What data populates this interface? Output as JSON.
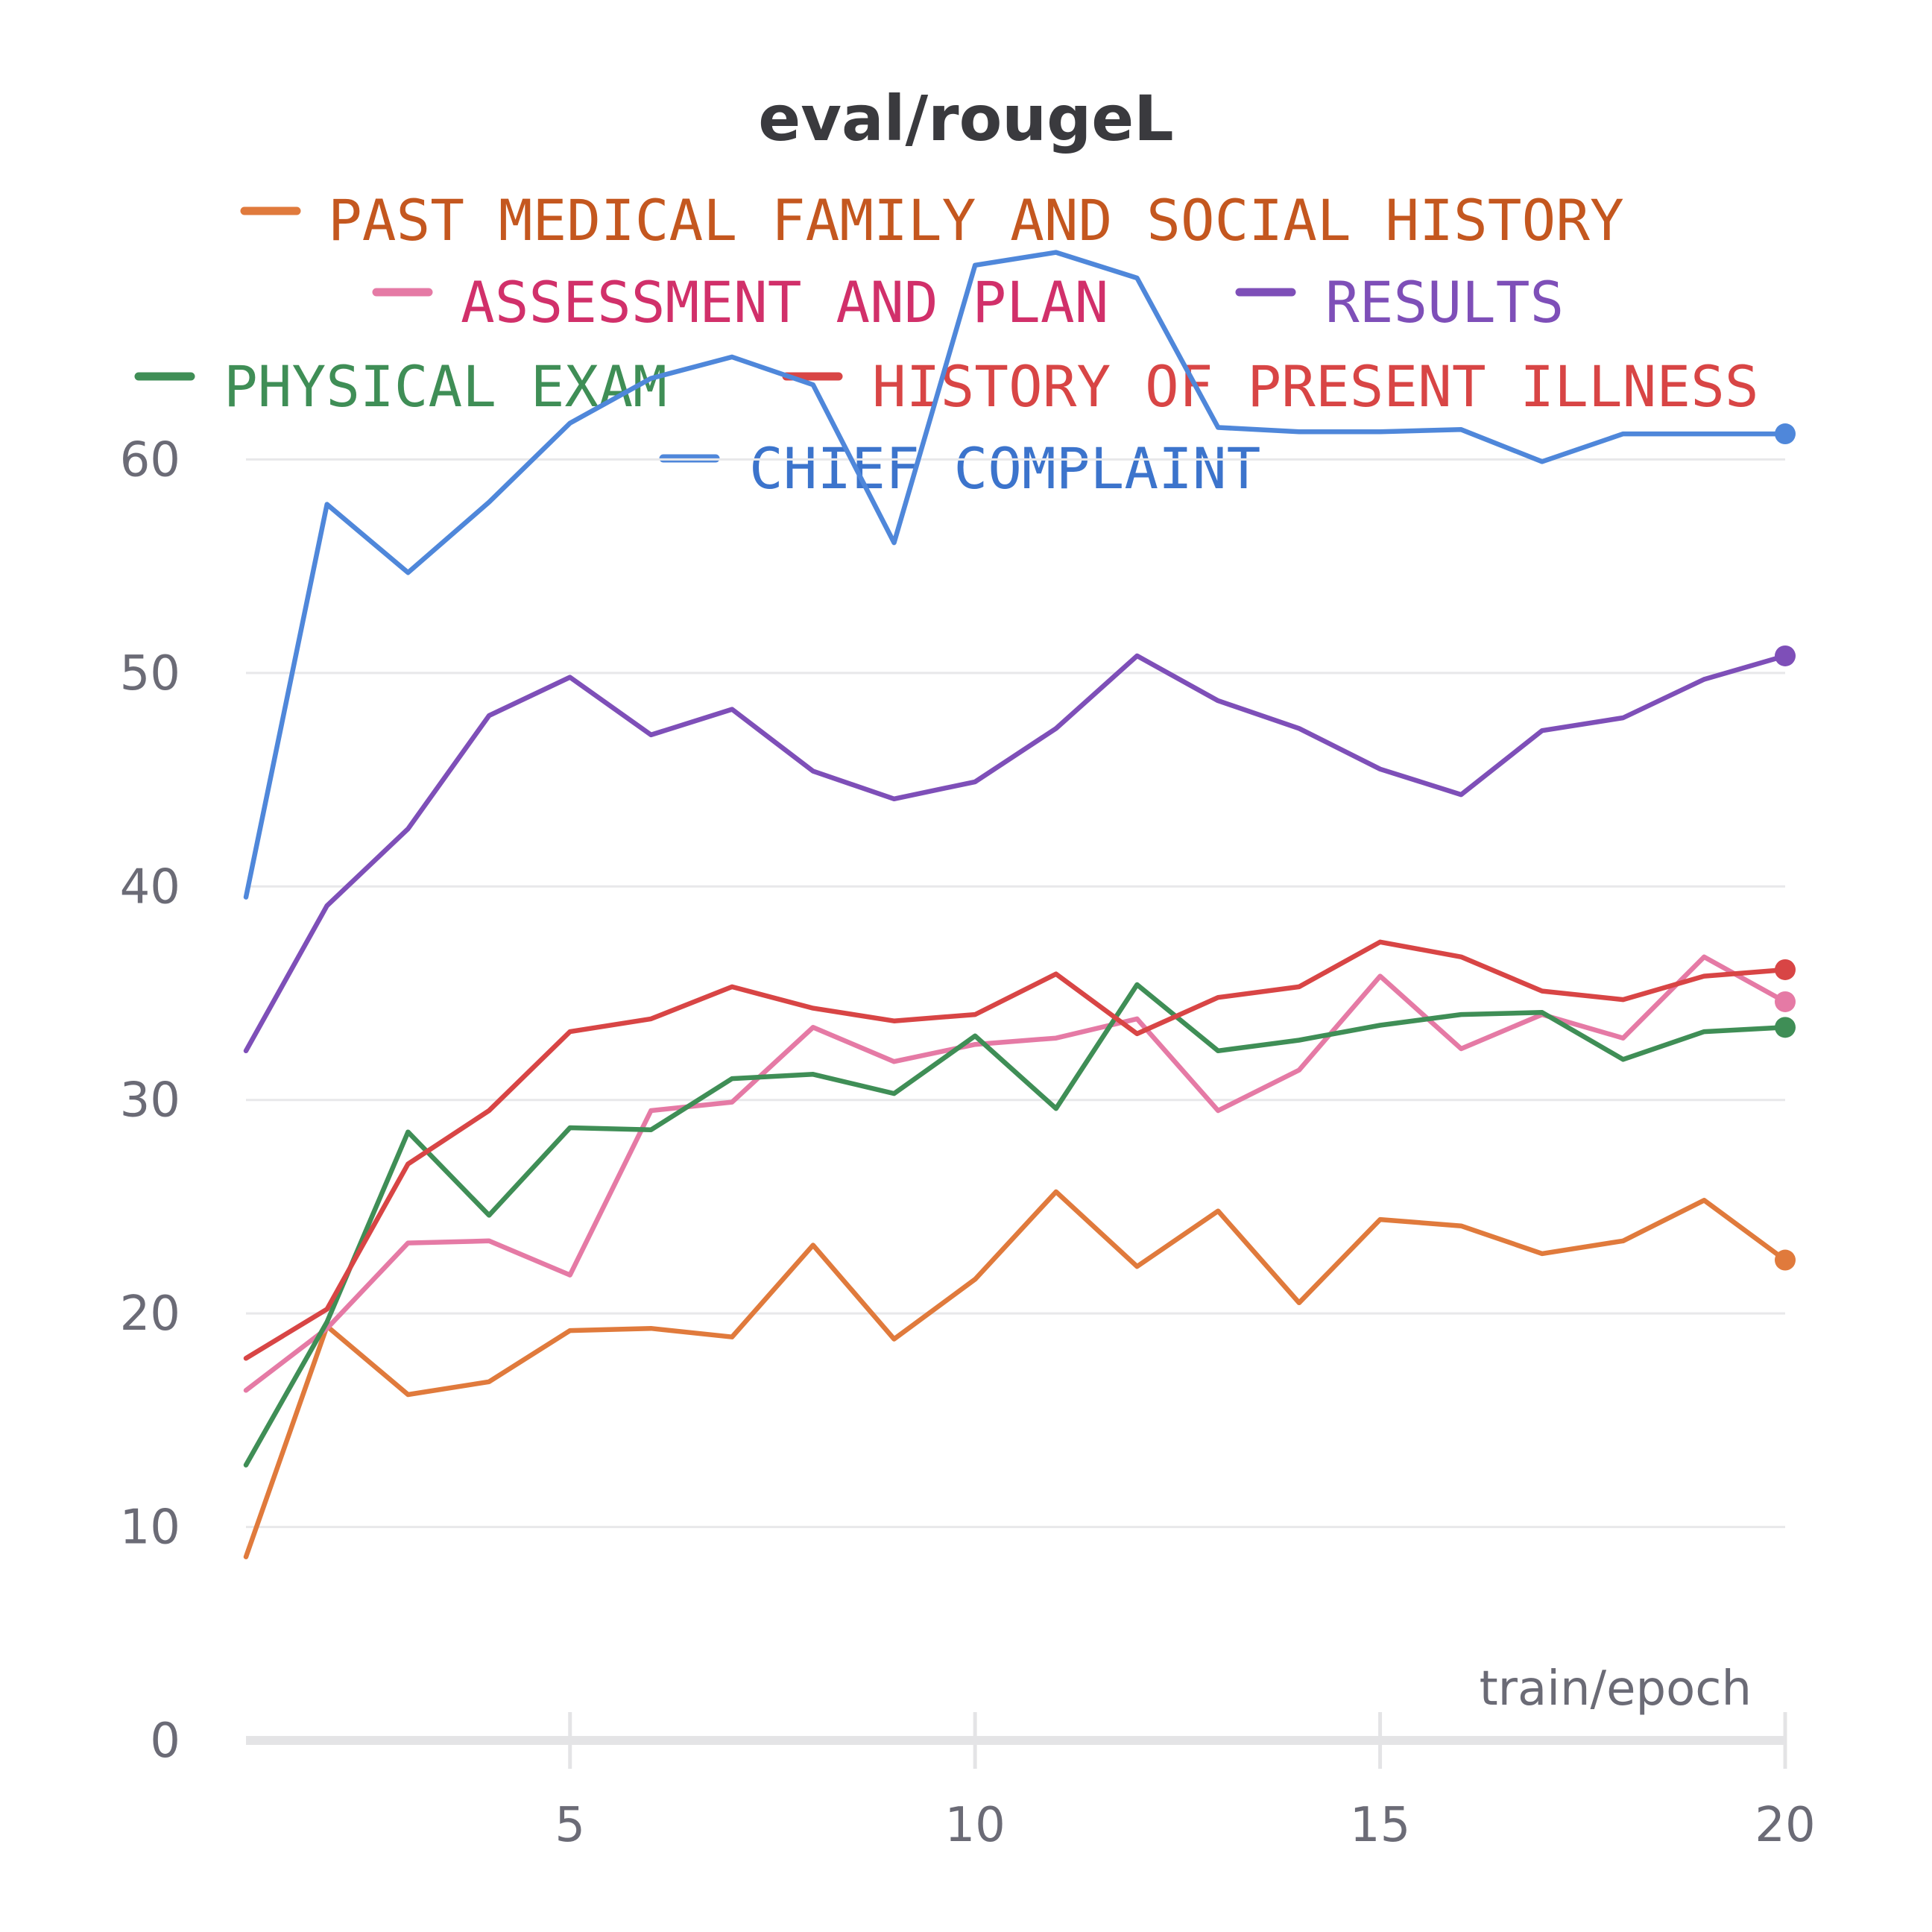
{
  "chart_data": {
    "type": "line",
    "title": "eval/rougeL",
    "xlabel": "train/epoch",
    "ylabel": "",
    "xlim": [
      1,
      20
    ],
    "ylim": [
      0,
      70
    ],
    "x_ticks": [
      5,
      10,
      15,
      20
    ],
    "y_ticks": [
      0,
      10,
      20,
      30,
      40,
      50,
      60
    ],
    "grid": true,
    "legend_position": "top",
    "x": [
      1,
      2,
      3,
      4,
      5,
      6,
      7,
      8,
      9,
      10,
      11,
      12,
      13,
      14,
      15,
      16,
      17,
      18,
      19,
      20
    ],
    "series": [
      {
        "name": "PAST MEDICAL FAMILY AND SOCIAL HISTORY",
        "color": "#e07a3c",
        "text_color": "#c4571f",
        "values": [
          8.6,
          19.4,
          16.2,
          16.8,
          19.2,
          19.3,
          18.9,
          23.2,
          18.8,
          21.6,
          25.7,
          22.2,
          24.8,
          20.5,
          24.4,
          24.1,
          22.8,
          23.4,
          25.3,
          22.5
        ]
      },
      {
        "name": "ASSESSMENT AND PLAN",
        "color": "#e57aa5",
        "text_color": "#d1306a",
        "values": [
          16.4,
          19.3,
          23.3,
          23.4,
          21.8,
          29.5,
          29.9,
          33.4,
          31.8,
          32.6,
          32.9,
          33.8,
          29.5,
          31.4,
          35.8,
          32.4,
          34.0,
          32.9,
          36.7,
          34.6
        ]
      },
      {
        "name": "RESULTS",
        "color": "#7e4fb8",
        "text_color": "#7e4fb8",
        "values": [
          32.3,
          39.1,
          42.7,
          48.0,
          49.8,
          47.1,
          48.3,
          45.4,
          44.1,
          44.9,
          47.4,
          50.8,
          48.7,
          47.4,
          45.5,
          44.3,
          47.3,
          47.9,
          49.7,
          50.8
        ]
      },
      {
        "name": "PHYSICAL EXAM",
        "color": "#3f8e56",
        "text_color": "#3f8e56",
        "values": [
          12.9,
          19.6,
          28.5,
          24.6,
          28.7,
          28.6,
          31.0,
          31.2,
          30.3,
          33.0,
          29.6,
          35.4,
          32.3,
          32.8,
          33.5,
          34.0,
          34.1,
          31.9,
          33.2,
          33.4
        ]
      },
      {
        "name": "HISTORY OF PRESENT ILLNESS",
        "color": "#d84545",
        "text_color": "#d84545",
        "values": [
          17.9,
          20.2,
          27.0,
          29.5,
          33.2,
          33.8,
          35.3,
          34.3,
          33.7,
          34.0,
          35.9,
          33.1,
          34.8,
          35.3,
          37.4,
          36.7,
          35.1,
          34.7,
          35.8,
          36.1
        ]
      },
      {
        "name": "CHIEF COMPLAINT",
        "color": "#4f87da",
        "text_color": "#3c74cc",
        "values": [
          39.5,
          57.9,
          54.7,
          58.0,
          61.7,
          63.8,
          64.8,
          63.5,
          56.1,
          69.1,
          69.7,
          68.5,
          61.5,
          61.3,
          61.3,
          61.4,
          59.9,
          61.2,
          61.2,
          61.2
        ]
      }
    ]
  }
}
